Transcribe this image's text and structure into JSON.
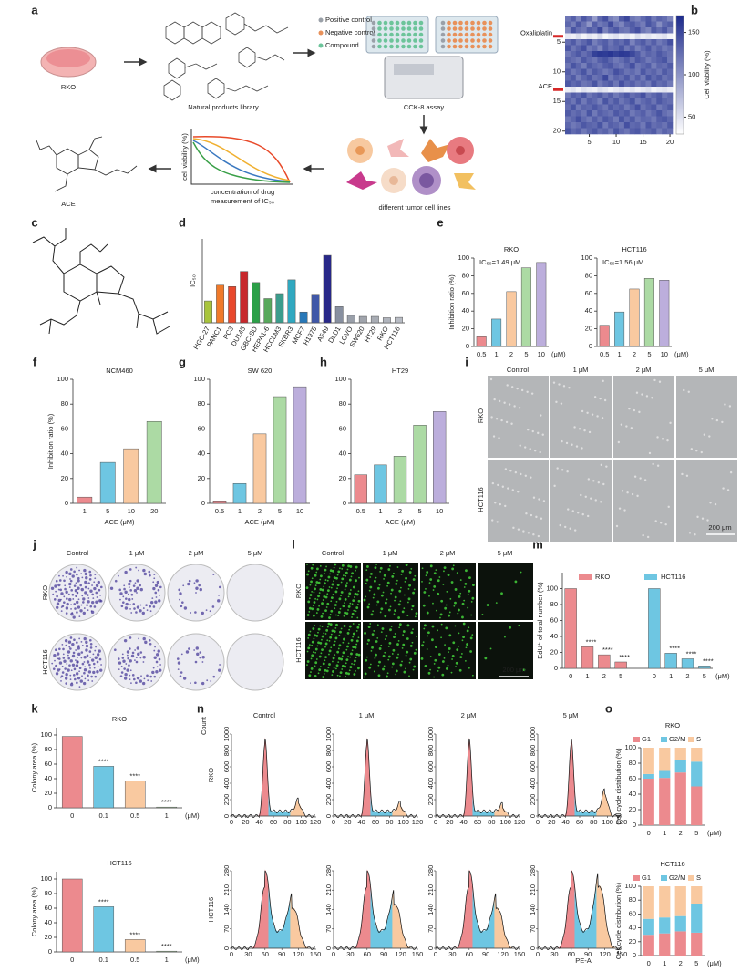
{
  "figure": {
    "letters": [
      "a",
      "b",
      "c",
      "d",
      "e",
      "f",
      "g",
      "h",
      "i",
      "j",
      "k",
      "l",
      "m",
      "n",
      "o"
    ]
  },
  "schematic": {
    "cell_line": "RKO",
    "library": "Natural products library",
    "legend": [
      {
        "label": "Positive control",
        "color": "#9aa0a8"
      },
      {
        "label": "Negative control",
        "color": "#e8915a"
      },
      {
        "label": "Compound",
        "color": "#6cc49a"
      }
    ],
    "assay": "CCK-8 assay",
    "cells": "different tumor cell lines",
    "compound": "ACE",
    "curve_ylabel": "cell viability (%)",
    "curve_xlabel": "concentration of drug",
    "curve_caption": "measurement of IC₅₀"
  },
  "images": {
    "i": {
      "columns": [
        "Control",
        "1 μM",
        "2 μM",
        "5 μM"
      ],
      "rows": [
        "RKO",
        "HCT116"
      ],
      "scale": "200 μm"
    },
    "j": {
      "columns": [
        "Control",
        "1 μM",
        "2 μM",
        "5 μM"
      ],
      "rows": [
        "RKO",
        "HCT116"
      ]
    },
    "l": {
      "columns": [
        "Control",
        "1 μM",
        "2 μM",
        "5 μM"
      ],
      "rows": [
        "RKO",
        "HCT116"
      ],
      "scale": "200 μm"
    }
  },
  "flow": {
    "y_label": "Count",
    "x_label": "PE-A",
    "columns": [
      "Control",
      "1 μM",
      "2 μM",
      "5 μM"
    ],
    "rows": [
      {
        "name": "RKO",
        "yticks": [
          0,
          200,
          400,
          600,
          800,
          1000
        ],
        "xticks": [
          0,
          20,
          40,
          60,
          80,
          100,
          120
        ]
      },
      {
        "name": "HCT116",
        "yticks": [
          0,
          70,
          140,
          210,
          280
        ],
        "xticks": [
          0,
          30,
          60,
          90,
          120,
          150
        ]
      }
    ]
  },
  "chart_data": [
    {
      "type": "heatmap",
      "clim": [
        30,
        170
      ],
      "cticks": [
        50,
        100,
        150
      ],
      "clabel": "Cell viability (%)",
      "xticks": [
        5,
        10,
        15,
        20
      ],
      "yticks": [
        5,
        10,
        15,
        20
      ],
      "row_labels": [
        {
          "row": 4,
          "label": "Oxaliplatin"
        },
        {
          "row": 13,
          "label": "ACE"
        }
      ],
      "values": [
        [
          120,
          135,
          110,
          140,
          125,
          95,
          130,
          145,
          115,
          105,
          138,
          150,
          120,
          112,
          128,
          140,
          118,
          132,
          125,
          110
        ],
        [
          130,
          115,
          140,
          122,
          100,
          135,
          118,
          126,
          148,
          120,
          110,
          132,
          138,
          125,
          116,
          142,
          130,
          105,
          128,
          136
        ],
        [
          108,
          142,
          125,
          118,
          136,
          128,
          150,
          112,
          130,
          140,
          122,
          118,
          135,
          145,
          120,
          110,
          138,
          126,
          140,
          118
        ],
        [
          45,
          40,
          52,
          38,
          48,
          42,
          55,
          36,
          44,
          50,
          40,
          46,
          38,
          52,
          42,
          48,
          40,
          45,
          50,
          38
        ],
        [
          125,
          138,
          118,
          130,
          142,
          115,
          128,
          136,
          120,
          134,
          126,
          140,
          112,
          130,
          138,
          122,
          135,
          118,
          128,
          145
        ],
        [
          140,
          120,
          132,
          145,
          118,
          128,
          110,
          138,
          125,
          130,
          142,
          120,
          135,
          115,
          128,
          140,
          122,
          132,
          118,
          126
        ],
        [
          118,
          130,
          140,
          125,
          135,
          155,
          160,
          158,
          162,
          155,
          160,
          158,
          150,
          138,
          120,
          132,
          126,
          140,
          130,
          122
        ],
        [
          132,
          125,
          118,
          140,
          128,
          120,
          135,
          142,
          130,
          118,
          126,
          138,
          122,
          140,
          132,
          118,
          128,
          135,
          142,
          120
        ],
        [
          120,
          142,
          130,
          115,
          138,
          128,
          122,
          135,
          140,
          125,
          118,
          130,
          145,
          120,
          128,
          136,
          115,
          130,
          125,
          138
        ],
        [
          135,
          118,
          128,
          142,
          120,
          138,
          130,
          118,
          126,
          145,
          135,
          122,
          128,
          118,
          140,
          125,
          132,
          120,
          138,
          128
        ],
        [
          126,
          138,
          115,
          130,
          140,
          122,
          128,
          150,
          118,
          132,
          125,
          140,
          120,
          135,
          118,
          142,
          128,
          138,
          122,
          130
        ],
        [
          140,
          128,
          135,
          120,
          125,
          142,
          118,
          130,
          138,
          120,
          145,
          128,
          135,
          122,
          130,
          118,
          140,
          126,
          132,
          118
        ],
        [
          42,
          48,
          38,
          50,
          44,
          40,
          52,
          46,
          38,
          45,
          50,
          42,
          48,
          40,
          46,
          52,
          38,
          44,
          48,
          42
        ],
        [
          118,
          135,
          128,
          142,
          120,
          130,
          138,
          122,
          135,
          118,
          128,
          140,
          125,
          132,
          145,
          120,
          130,
          138,
          118,
          128
        ],
        [
          132,
          120,
          140,
          118,
          135,
          128,
          115,
          142,
          125,
          138,
          120,
          130,
          142,
          118,
          128,
          135,
          122,
          140,
          130,
          125
        ],
        [
          125,
          142,
          118,
          132,
          128,
          140,
          130,
          120,
          138,
          128,
          135,
          118,
          130,
          145,
          122,
          132,
          140,
          118,
          128,
          138
        ],
        [
          138,
          125,
          132,
          120,
          142,
          118,
          135,
          128,
          122,
          140,
          130,
          138,
          118,
          128,
          135,
          120,
          130,
          142,
          125,
          118
        ],
        [
          120,
          130,
          145,
          128,
          118,
          135,
          122,
          140,
          132,
          118,
          142,
          125,
          138,
          120,
          130,
          128,
          118,
          135,
          140,
          130
        ],
        [
          130,
          118,
          125,
          140,
          132,
          128,
          142,
          118,
          135,
          130,
          120,
          145,
          128,
          132,
          118,
          140,
          125,
          130,
          122,
          138
        ],
        [
          142,
          128,
          135,
          118,
          130,
          140,
          125,
          132,
          118,
          142,
          128,
          120,
          135,
          140,
          125,
          130,
          138,
          118,
          132,
          125
        ]
      ]
    },
    {
      "type": "bar",
      "ylabel": "IC₅₀",
      "ylim": [
        0,
        25
      ],
      "rotate": true,
      "categories": [
        "HGC-27",
        "PANC1",
        "PC3",
        "DU145",
        "GBC-SD",
        "HEPA1-6",
        "HCCLM3",
        "SKBR3",
        "MCF7",
        "H1975",
        "A549",
        "DLD1",
        "LOVO",
        "SW620",
        "HT29",
        "RKO",
        "HCT116"
      ],
      "values": [
        6.5,
        11.2,
        10.8,
        15.3,
        12.0,
        7.2,
        8.7,
        12.8,
        3.2,
        8.5,
        20.1,
        4.8,
        2.2,
        1.9,
        1.9,
        1.5,
        1.6
      ],
      "colors": [
        "#a8c43c",
        "#f07a2a",
        "#e8482c",
        "#c8282c",
        "#2ca048",
        "#58a85c",
        "#3c9c8c",
        "#30a8c0",
        "#2878b8",
        "#4058a8",
        "#282888",
        "#8890a0",
        "#9aa0aa",
        "#a0a4ac",
        "#a8acb4",
        "#b0b4bc",
        "#b8bcc4"
      ]
    },
    {
      "type": "bar",
      "title": "RKO",
      "ylabel": "Inhibition ratio (%)",
      "annotation": "IC₅₀=1.49 μM",
      "unit": "(μM)",
      "ylim": [
        0,
        100
      ],
      "yticks": [
        0,
        20,
        40,
        60,
        80,
        100
      ],
      "categories": [
        "0.5",
        "1",
        "2",
        "5",
        "10"
      ],
      "values": [
        11,
        31,
        62,
        89,
        95
      ],
      "colors": [
        "#ec8a8e",
        "#6ec6e2",
        "#f9c9a0",
        "#acdaa4",
        "#bcaedc"
      ]
    },
    {
      "type": "bar",
      "title": "HCT116",
      "annotation": "IC₅₀=1.56 μM",
      "unit": "(μM)",
      "ylim": [
        0,
        100
      ],
      "yticks": [
        0,
        20,
        40,
        60,
        80,
        100
      ],
      "categories": [
        "0.5",
        "1",
        "2",
        "5",
        "10"
      ],
      "values": [
        24,
        39,
        65,
        77,
        75
      ],
      "colors": [
        "#ec8a8e",
        "#6ec6e2",
        "#f9c9a0",
        "#acdaa4",
        "#bcaedc"
      ]
    },
    {
      "type": "bar",
      "title": "NCM460",
      "ylabel": "Inhibition ratio (%)",
      "xlabel": "ACE (μM)",
      "ylim": [
        0,
        100
      ],
      "yticks": [
        0,
        20,
        40,
        60,
        80,
        100
      ],
      "categories": [
        "1",
        "5",
        "10",
        "20"
      ],
      "values": [
        5,
        33,
        44,
        66
      ],
      "colors": [
        "#ec8a8e",
        "#6ec6e2",
        "#f9c9a0",
        "#acdaa4"
      ]
    },
    {
      "type": "bar",
      "title": "SW 620",
      "xlabel": "ACE (μM)",
      "ylim": [
        0,
        100
      ],
      "yticks": [
        0,
        20,
        40,
        60,
        80,
        100
      ],
      "categories": [
        "0.5",
        "1",
        "2",
        "5",
        "10"
      ],
      "values": [
        2,
        16,
        56,
        86,
        94
      ],
      "colors": [
        "#ec8a8e",
        "#6ec6e2",
        "#f9c9a0",
        "#acdaa4",
        "#bcaedc"
      ]
    },
    {
      "type": "bar",
      "title": "HT29",
      "xlabel": "ACE (μM)",
      "ylim": [
        0,
        100
      ],
      "yticks": [
        0,
        20,
        40,
        60,
        80,
        100
      ],
      "categories": [
        "0.5",
        "1",
        "2",
        "5",
        "10"
      ],
      "values": [
        23,
        31,
        38,
        63,
        74
      ],
      "colors": [
        "#ec8a8e",
        "#6ec6e2",
        "#acdaa4",
        "#acdaa4",
        "#bcaedc"
      ]
    },
    {
      "type": "grouped_bar",
      "ylabel": "EdU⁺ of total number (%)",
      "unit": "(μM)",
      "ylim": [
        0,
        120
      ],
      "yticks": [
        0,
        20,
        40,
        60,
        80,
        100
      ],
      "categories": [
        "0",
        "1",
        "2",
        "5"
      ],
      "series": [
        {
          "name": "RKO",
          "color": "#ec8a8e",
          "values": [
            100,
            27,
            17,
            8
          ],
          "significance": [
            null,
            "****",
            "****",
            "****"
          ]
        },
        {
          "name": "HCT116",
          "color": "#6ec6e2",
          "values": [
            100,
            19,
            12,
            3
          ],
          "significance": [
            null,
            "****",
            "****",
            "****"
          ]
        }
      ]
    },
    {
      "type": "bar",
      "title": "RKO",
      "ylabel": "Colony area (%)",
      "unit": "(μM)",
      "ylim": [
        0,
        110
      ],
      "yticks": [
        0,
        20,
        40,
        60,
        80,
        100
      ],
      "categories": [
        "0",
        "0.1",
        "0.5",
        "1"
      ],
      "values": [
        98,
        57,
        37,
        1
      ],
      "colors": [
        "#ec8a8e",
        "#6ec6e2",
        "#f9c9a0",
        "#acdaa4"
      ],
      "significance": [
        null,
        "****",
        "****",
        "****"
      ]
    },
    {
      "type": "bar",
      "title": "HCT116",
      "ylabel": "Colony area (%)",
      "unit": "(μM)",
      "ylim": [
        0,
        110
      ],
      "yticks": [
        0,
        20,
        40,
        60,
        80,
        100
      ],
      "categories": [
        "0",
        "0.1",
        "0.5",
        "1"
      ],
      "values": [
        100,
        62,
        17,
        1
      ],
      "colors": [
        "#ec8a8e",
        "#6ec6e2",
        "#f9c9a0",
        "#acdaa4"
      ],
      "significance": [
        null,
        "****",
        "****",
        "****"
      ]
    },
    {
      "type": "stacked_bar",
      "title": "RKO",
      "ylabel": "Cell cycle distribution (%)",
      "unit": "(μM)",
      "ylim": [
        0,
        100
      ],
      "yticks": [
        0,
        20,
        40,
        60,
        80,
        100
      ],
      "categories": [
        "0",
        "1",
        "2",
        "5"
      ],
      "series": [
        {
          "name": "G1",
          "color": "#ec8a8e",
          "values": [
            60,
            61,
            68,
            50
          ]
        },
        {
          "name": "G2/M",
          "color": "#6ec6e2",
          "values": [
            6,
            9,
            16,
            32
          ]
        },
        {
          "name": "S",
          "color": "#f9c9a0",
          "values": [
            34,
            30,
            16,
            18
          ]
        }
      ]
    },
    {
      "type": "stacked_bar",
      "title": "HCT116",
      "ylabel": "Cell cycle distribution (%)",
      "unit": "(μM)",
      "ylim": [
        0,
        100
      ],
      "yticks": [
        0,
        20,
        40,
        60,
        80,
        100
      ],
      "categories": [
        "0",
        "1",
        "2",
        "5"
      ],
      "series": [
        {
          "name": "G1",
          "color": "#ec8a8e",
          "values": [
            30,
            32,
            35,
            33
          ]
        },
        {
          "name": "G2/M",
          "color": "#6ec6e2",
          "values": [
            23,
            23,
            22,
            42
          ]
        },
        {
          "name": "S",
          "color": "#f9c9a0",
          "values": [
            47,
            45,
            43,
            25
          ]
        }
      ]
    }
  ]
}
